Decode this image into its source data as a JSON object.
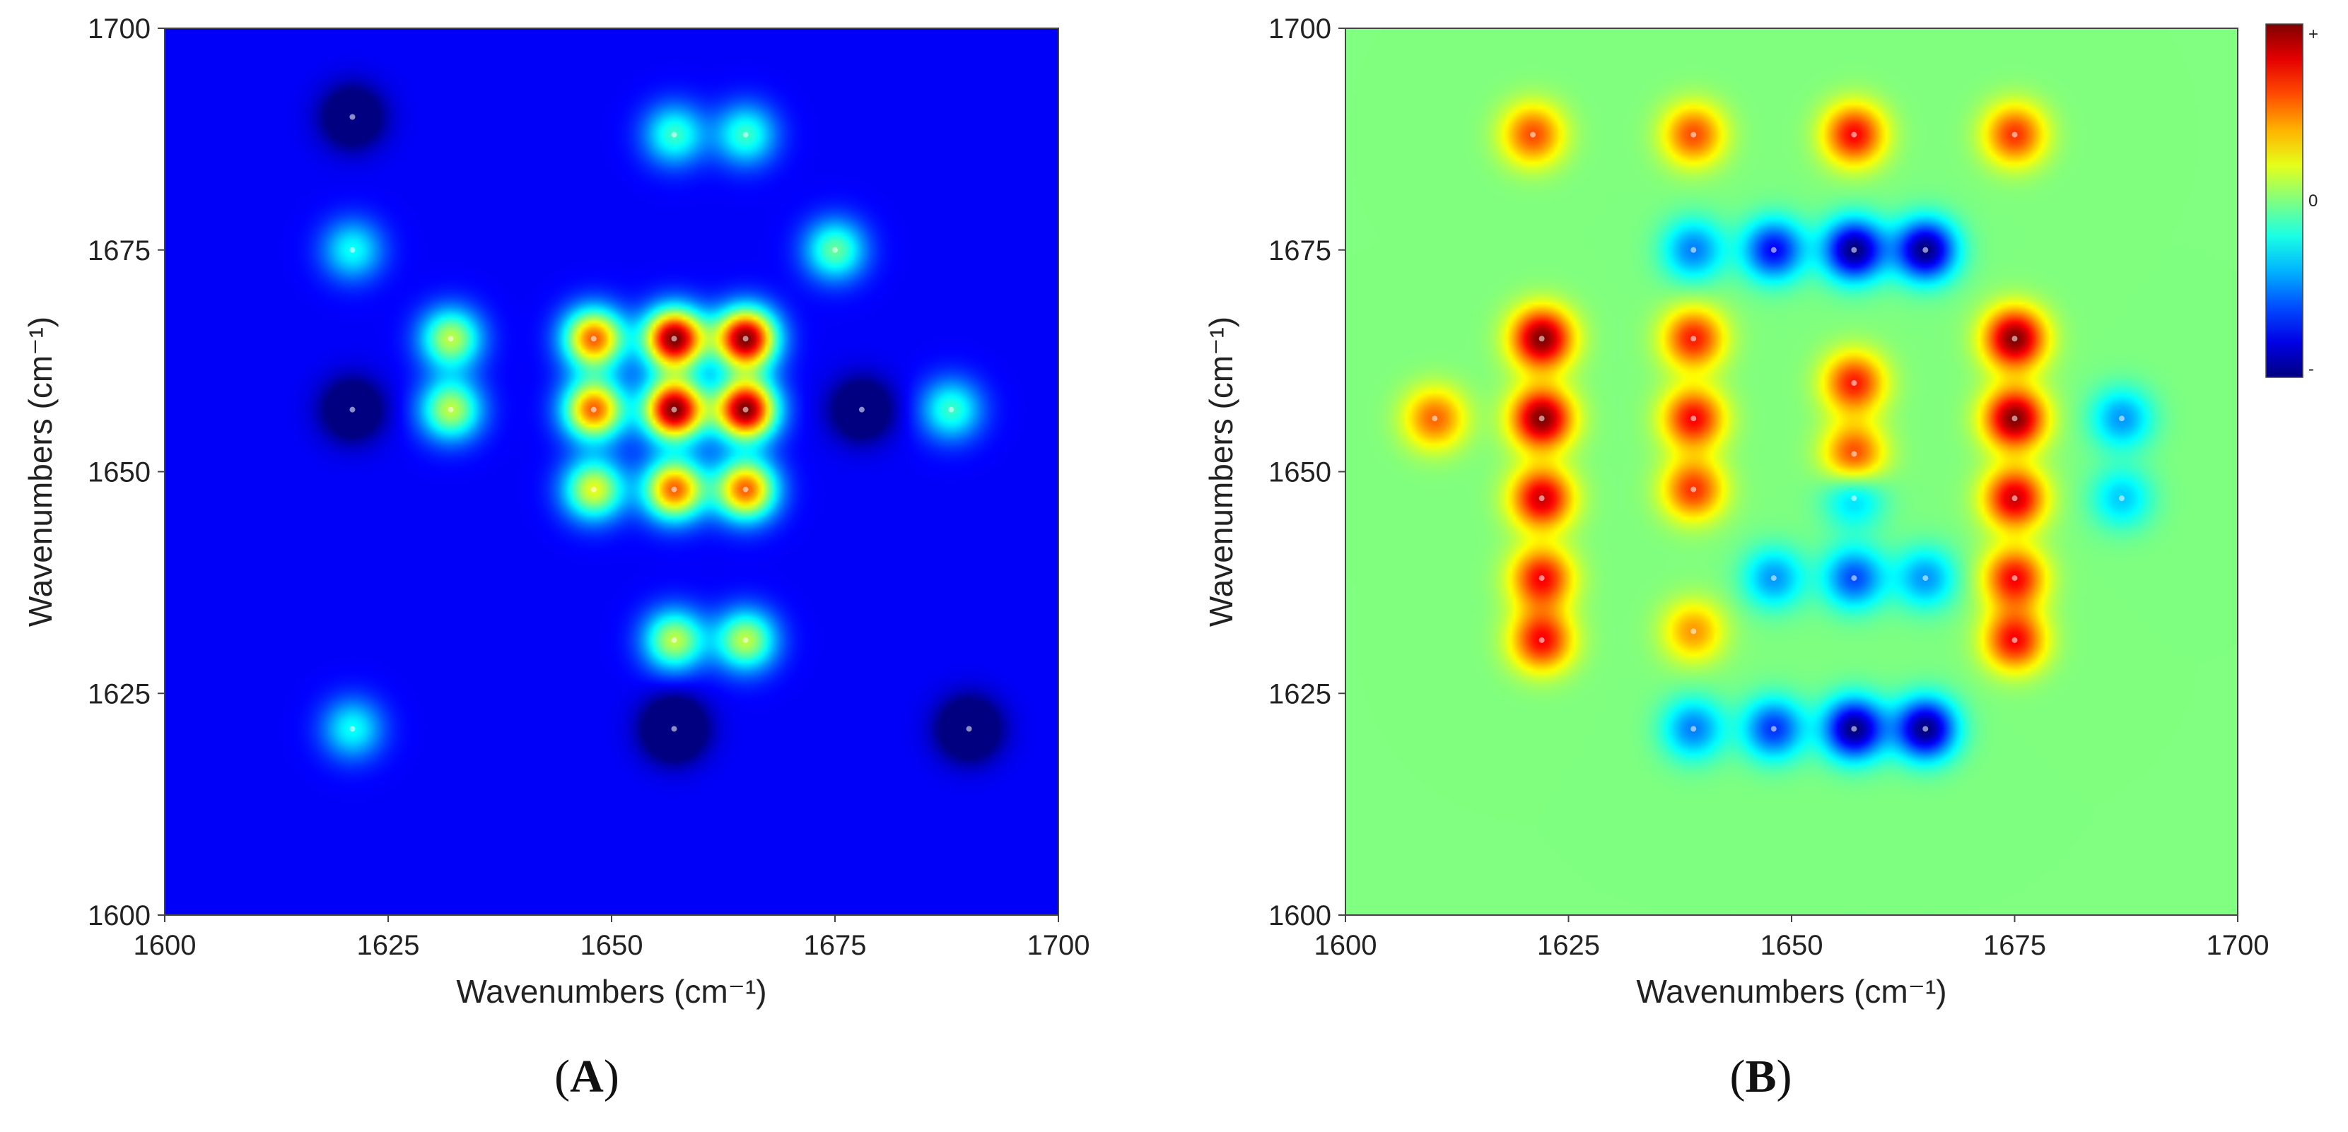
{
  "chart_data": [
    {
      "type": "heatmap",
      "panel_label": "A",
      "xlabel": "Wavenumbers (cm⁻¹)",
      "ylabel": "Wavenumbers (cm⁻¹)",
      "xlim": [
        1600,
        1700
      ],
      "ylim": [
        1600,
        1700
      ],
      "xticks": [
        1600,
        1625,
        1650,
        1675,
        1700
      ],
      "yticks": [
        1600,
        1625,
        1650,
        1675,
        1700
      ],
      "colormap": "jet",
      "background_level": 0.12,
      "peaks": [
        {
          "x": 1657,
          "y": 1665,
          "value": 1.0
        },
        {
          "x": 1665,
          "y": 1665,
          "value": 1.0
        },
        {
          "x": 1657,
          "y": 1657,
          "value": 1.0
        },
        {
          "x": 1665,
          "y": 1657,
          "value": 1.0
        },
        {
          "x": 1648,
          "y": 1665,
          "value": 0.75
        },
        {
          "x": 1648,
          "y": 1657,
          "value": 0.75
        },
        {
          "x": 1657,
          "y": 1648,
          "value": 0.75
        },
        {
          "x": 1665,
          "y": 1648,
          "value": 0.75
        },
        {
          "x": 1648,
          "y": 1648,
          "value": 0.55
        },
        {
          "x": 1632,
          "y": 1665,
          "value": 0.5
        },
        {
          "x": 1632,
          "y": 1657,
          "value": 0.5
        },
        {
          "x": 1657,
          "y": 1631,
          "value": 0.5
        },
        {
          "x": 1665,
          "y": 1631,
          "value": 0.5
        },
        {
          "x": 1675,
          "y": 1675,
          "value": 0.4
        },
        {
          "x": 1621,
          "y": 1621,
          "value": 0.3
        },
        {
          "x": 1688,
          "y": 1657,
          "value": 0.35
        },
        {
          "x": 1621,
          "y": 1675,
          "value": 0.3
        },
        {
          "x": 1657,
          "y": 1688,
          "value": 0.35
        },
        {
          "x": 1665,
          "y": 1688,
          "value": 0.35
        },
        {
          "x": 1657,
          "y": 1621,
          "value": -0.4
        },
        {
          "x": 1621,
          "y": 1657,
          "value": -0.3
        },
        {
          "x": 1678,
          "y": 1657,
          "value": -0.3
        },
        {
          "x": 1690,
          "y": 1621,
          "value": -0.35
        },
        {
          "x": 1621,
          "y": 1690,
          "value": -0.3
        }
      ]
    },
    {
      "type": "heatmap",
      "panel_label": "B",
      "xlabel": "Wavenumbers (cm⁻¹)",
      "ylabel": "Wavenumbers (cm⁻¹)",
      "xlim": [
        1600,
        1700
      ],
      "ylim": [
        1600,
        1700
      ],
      "xticks": [
        1600,
        1625,
        1650,
        1675,
        1700
      ],
      "yticks": [
        1600,
        1625,
        1650,
        1675,
        1700
      ],
      "colormap": "jet",
      "background_level": 0.5,
      "colorbar": {
        "max_label": "+",
        "mid_label": "0",
        "min_label": "-"
      },
      "peaks": [
        {
          "x": 1622,
          "y": 1665,
          "value": 1.0
        },
        {
          "x": 1622,
          "y": 1656,
          "value": 1.0
        },
        {
          "x": 1622,
          "y": 1647,
          "value": 0.85
        },
        {
          "x": 1622,
          "y": 1638,
          "value": 0.75
        },
        {
          "x": 1622,
          "y": 1631,
          "value": 0.75
        },
        {
          "x": 1675,
          "y": 1665,
          "value": 1.0
        },
        {
          "x": 1675,
          "y": 1656,
          "value": 1.0
        },
        {
          "x": 1675,
          "y": 1647,
          "value": 0.85
        },
        {
          "x": 1675,
          "y": 1638,
          "value": 0.75
        },
        {
          "x": 1675,
          "y": 1631,
          "value": 0.75
        },
        {
          "x": 1639,
          "y": 1665,
          "value": 0.7
        },
        {
          "x": 1639,
          "y": 1656,
          "value": 0.75
        },
        {
          "x": 1639,
          "y": 1648,
          "value": 0.65
        },
        {
          "x": 1639,
          "y": 1632,
          "value": 0.45
        },
        {
          "x": 1610,
          "y": 1656,
          "value": 0.55
        },
        {
          "x": 1657,
          "y": 1688,
          "value": 0.75
        },
        {
          "x": 1675,
          "y": 1688,
          "value": 0.65
        },
        {
          "x": 1639,
          "y": 1688,
          "value": 0.6
        },
        {
          "x": 1621,
          "y": 1688,
          "value": 0.6
        },
        {
          "x": 1657,
          "y": 1660,
          "value": 0.7
        },
        {
          "x": 1657,
          "y": 1652,
          "value": 0.62
        },
        {
          "x": 1657,
          "y": 1675,
          "value": -1.0
        },
        {
          "x": 1665,
          "y": 1675,
          "value": -1.0
        },
        {
          "x": 1648,
          "y": 1675,
          "value": -0.75
        },
        {
          "x": 1639,
          "y": 1675,
          "value": -0.5
        },
        {
          "x": 1657,
          "y": 1621,
          "value": -1.0
        },
        {
          "x": 1665,
          "y": 1621,
          "value": -1.0
        },
        {
          "x": 1648,
          "y": 1621,
          "value": -0.65
        },
        {
          "x": 1639,
          "y": 1621,
          "value": -0.5
        },
        {
          "x": 1657,
          "y": 1638,
          "value": -0.6
        },
        {
          "x": 1648,
          "y": 1638,
          "value": -0.45
        },
        {
          "x": 1665,
          "y": 1638,
          "value": -0.45
        },
        {
          "x": 1657,
          "y": 1647,
          "value": -0.35
        },
        {
          "x": 1687,
          "y": 1656,
          "value": -0.45
        },
        {
          "x": 1687,
          "y": 1647,
          "value": -0.35
        }
      ]
    }
  ]
}
